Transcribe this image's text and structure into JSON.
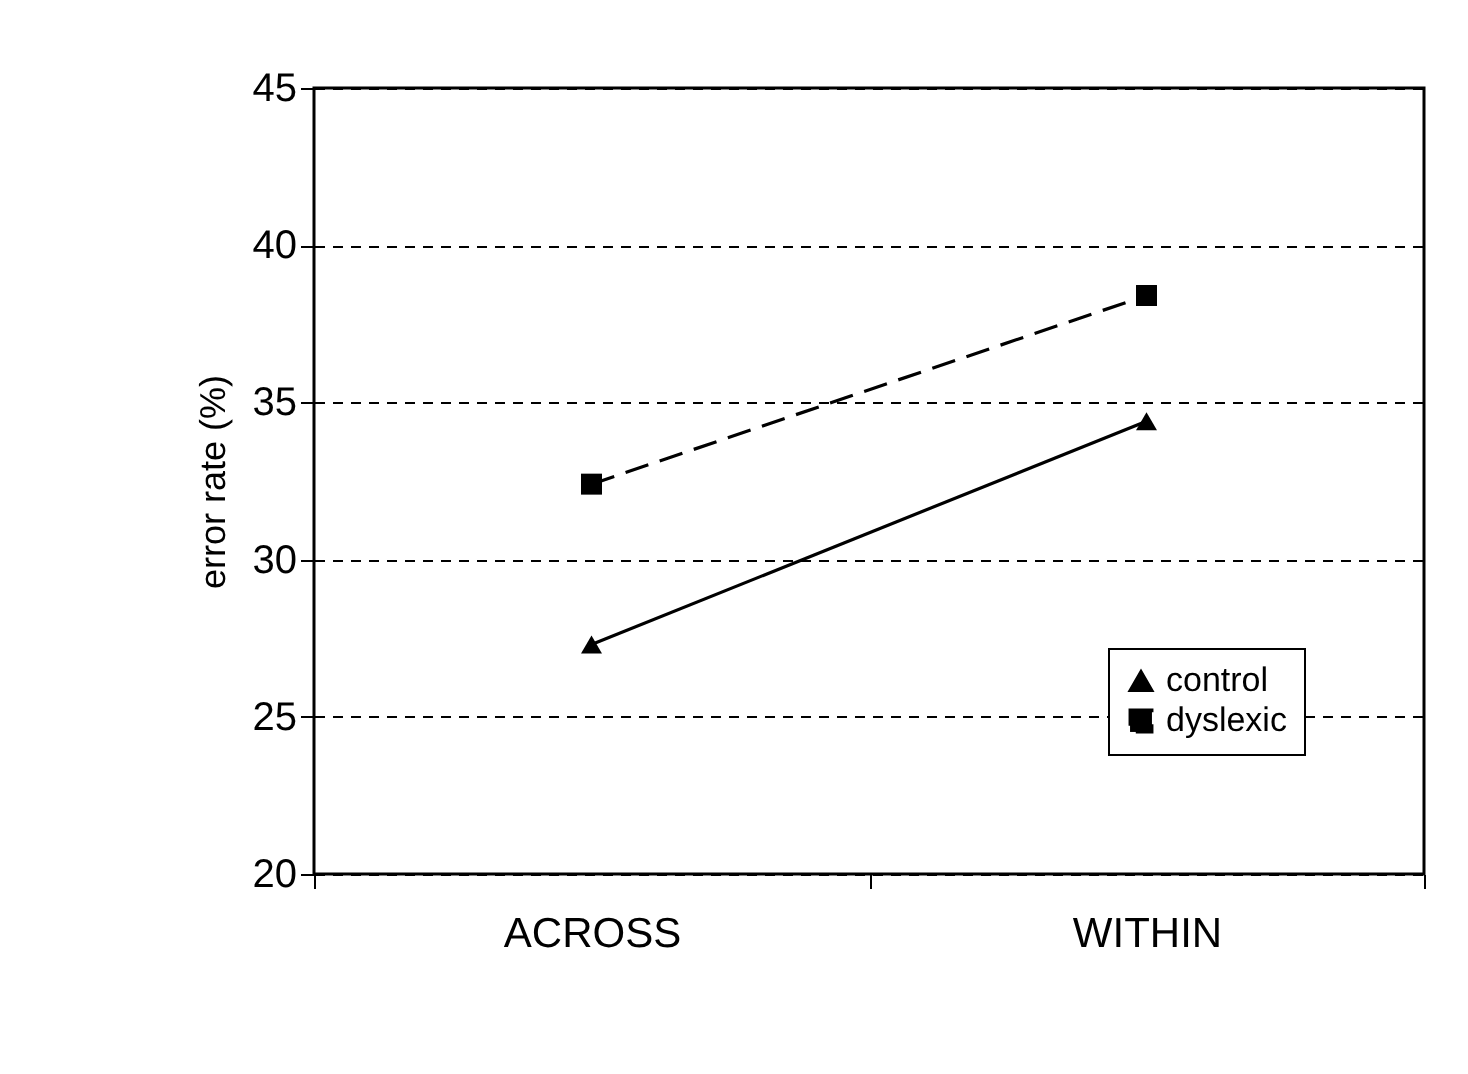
{
  "chart_data": {
    "type": "line",
    "ylabel": "error rate (%)",
    "categories": [
      "ACROSS",
      "WITHIN"
    ],
    "series": [
      {
        "name": "control",
        "color": "#000000",
        "values": [
          27.3,
          34.4
        ],
        "marker": "triangle",
        "line_style": "solid"
      },
      {
        "name": "dyslexic",
        "color": "#000000",
        "values": [
          32.4,
          38.4
        ],
        "marker": "square",
        "line_style": "dashed"
      }
    ],
    "ylim": [
      20,
      45
    ],
    "yticks": [
      20,
      25,
      30,
      35,
      40,
      45
    ],
    "grid": "y",
    "legend": "bottom right"
  }
}
